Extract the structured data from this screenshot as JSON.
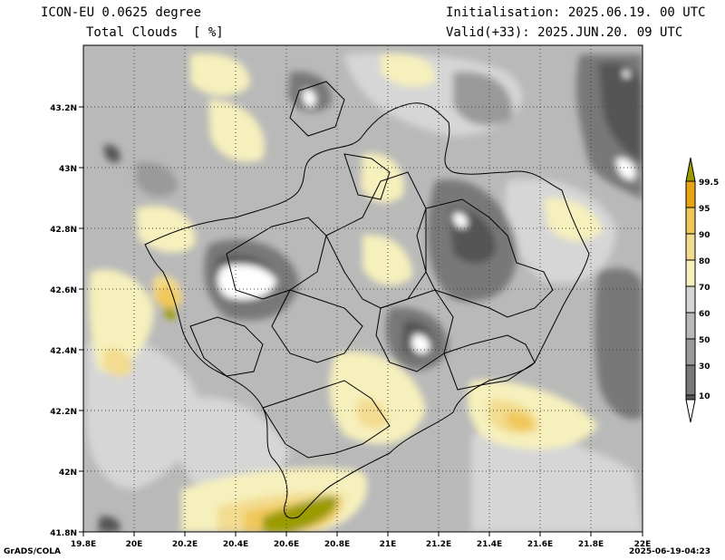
{
  "header": {
    "model": "ICON-EU 0.0625 degree",
    "field": "Total Clouds  [ %]",
    "init": "Initialisation: 2025.06.19. 00 UTC",
    "valid": "Valid(+33): 2025.JUN.20. 09 UTC"
  },
  "footer": {
    "left": "GrADS/COLA",
    "right": "2025-06-19-04:23"
  },
  "map": {
    "lon_ticks": [
      "19.8E",
      "20E",
      "20.2E",
      "20.4E",
      "20.6E",
      "20.8E",
      "21E",
      "21.2E",
      "21.4E",
      "21.6E",
      "21.8E",
      "22E"
    ],
    "lat_ticks": [
      "43.2N",
      "43N",
      "42.8N",
      "42.6N",
      "42.4N",
      "42.2N",
      "42N",
      "41.8N"
    ]
  },
  "colorbar": {
    "labels": [
      "99.5",
      "95",
      "90",
      "80",
      "70",
      "60",
      "50",
      "30",
      "10"
    ],
    "colors": [
      "#9b9b00",
      "#e8a317",
      "#f0c85a",
      "#f3dc8f",
      "#f6f0bd",
      "#d6d6d6",
      "#b9b9b9",
      "#9a9a9a",
      "#787878",
      "#555555",
      "#ffffff"
    ]
  }
}
